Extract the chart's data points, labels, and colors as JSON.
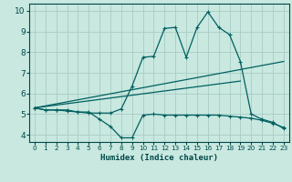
{
  "xlabel": "Humidex (Indice chaleur)",
  "bg_color": "#c8e8e0",
  "grid_color": "#a8ccc4",
  "line_color": "#006060",
  "spine_color": "#004848",
  "xlim": [
    -0.5,
    23.5
  ],
  "ylim": [
    3.65,
    10.35
  ],
  "xticks": [
    0,
    1,
    2,
    3,
    4,
    5,
    6,
    7,
    8,
    9,
    10,
    11,
    12,
    13,
    14,
    15,
    16,
    17,
    18,
    19,
    20,
    21,
    22,
    23
  ],
  "yticks": [
    4,
    5,
    6,
    7,
    8,
    9,
    10
  ],
  "line1_x": [
    0,
    1,
    2,
    3,
    4,
    5,
    6,
    7,
    8,
    9,
    10,
    11,
    12,
    13,
    14,
    15,
    16,
    17,
    18,
    19,
    20,
    21,
    22,
    23
  ],
  "line1_y": [
    5.3,
    5.2,
    5.2,
    5.15,
    5.1,
    5.05,
    5.05,
    5.05,
    5.25,
    6.35,
    7.75,
    7.8,
    9.15,
    9.2,
    7.75,
    9.2,
    9.95,
    9.2,
    8.85,
    7.55,
    5.0,
    4.75,
    4.6,
    4.3
  ],
  "line2_x": [
    0,
    1,
    2,
    3,
    4,
    5,
    6,
    7,
    8,
    9,
    10,
    11,
    12,
    13,
    14,
    15,
    16,
    17,
    18,
    19,
    20,
    21,
    22,
    23
  ],
  "line2_y": [
    5.3,
    5.2,
    5.2,
    5.2,
    5.1,
    5.1,
    4.75,
    4.4,
    3.85,
    3.85,
    4.95,
    5.0,
    4.95,
    4.95,
    4.95,
    4.95,
    4.95,
    4.95,
    4.9,
    4.85,
    4.8,
    4.7,
    4.55,
    4.35
  ],
  "line3_x": [
    0,
    19
  ],
  "line3_y": [
    5.3,
    6.6
  ],
  "line4_x": [
    0,
    23
  ],
  "line4_y": [
    5.3,
    7.55
  ],
  "marker": "+"
}
